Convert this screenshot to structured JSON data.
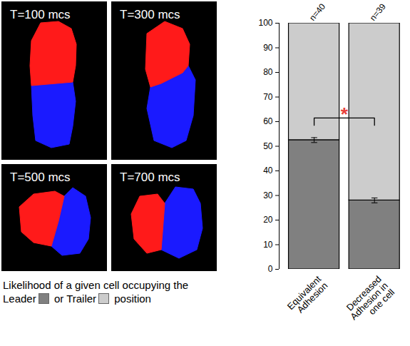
{
  "chart_data": {
    "type": "bar",
    "stacked": true,
    "categories": [
      "Equivalent Adhesion",
      "Decreased Adhesion in one cell"
    ],
    "annotations": [
      "n=40",
      "n=39"
    ],
    "series": [
      {
        "name": "Leader",
        "color": "#808080",
        "values": [
          52.5,
          28
        ],
        "errors": [
          1,
          1
        ]
      },
      {
        "name": "Trailer",
        "color": "#cccccc",
        "values": [
          47.5,
          72
        ]
      }
    ],
    "significance": {
      "label": "*",
      "between": [
        0,
        1
      ]
    },
    "ylim": [
      0,
      100
    ],
    "yticks": [
      0,
      10,
      20,
      30,
      40,
      50,
      60,
      70,
      80,
      90,
      100
    ],
    "grid": false
  },
  "snapshots": [
    "T=100 mcs",
    "T=300 mcs",
    "T=500 mcs",
    "T=700 mcs"
  ],
  "caption": [
    "Likelihood of a given cell occupying the",
    "or",
    "position"
  ]
}
